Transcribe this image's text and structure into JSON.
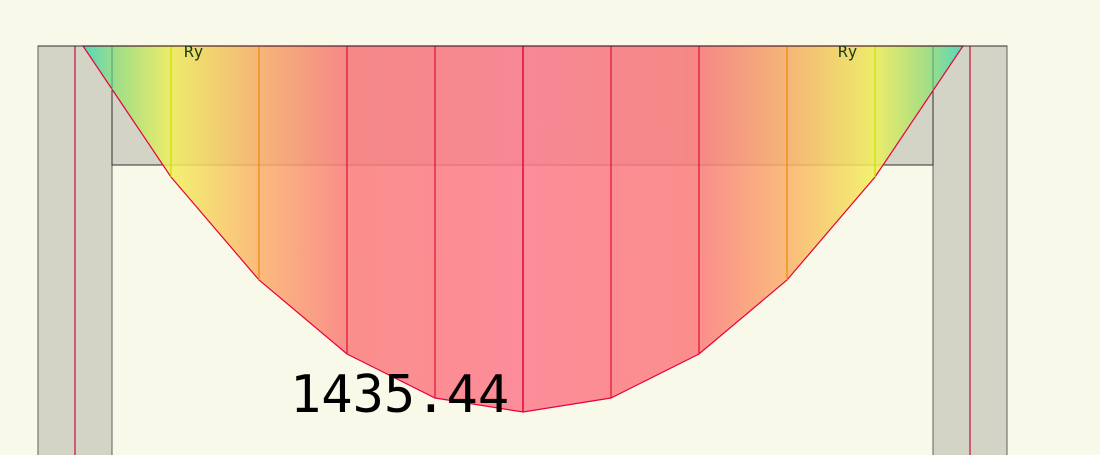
{
  "colors": {
    "background": "#f8f9e8",
    "column_fill": "#d3d3c6",
    "column_outline": "#606060",
    "reference_line": "#c8102e",
    "beam_fill": "#d3d3c6",
    "diagram_outline": "#e8003c",
    "label_text": "#1a3a1a",
    "value_text": "#000000"
  },
  "labels": {
    "reaction_left": "Ry",
    "reaction_right": "Ry",
    "peak_value": "1435.44"
  }
}
